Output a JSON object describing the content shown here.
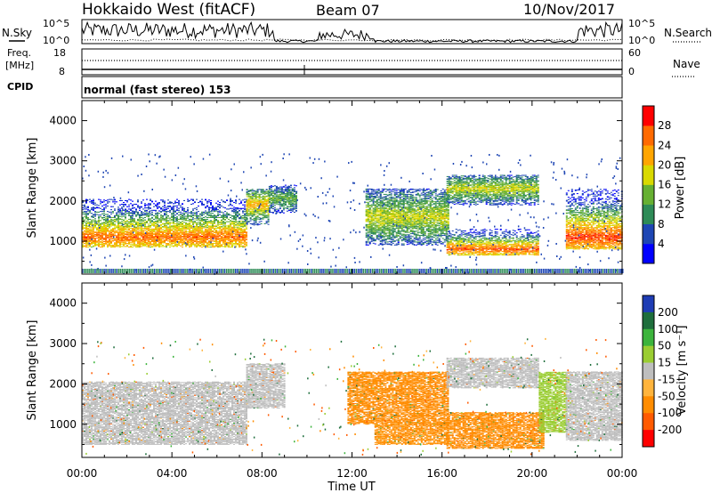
{
  "header": {
    "station": "Hokkaido West (fitACF)",
    "beam": "Beam 07",
    "date": "10/Nov/2017"
  },
  "side_labels": {
    "nsky": "N.Sky",
    "nsearch": "N.Search",
    "freq_line1": "Freq.",
    "freq_line2": "[MHz]",
    "nave": "Nave",
    "cpid": "CPID",
    "cpid_value": "normal (fast stereo) 153",
    "noise_ticks": [
      "10^5",
      "10^0"
    ],
    "freq_ticks": [
      "18",
      "8"
    ],
    "nave_ticks": [
      "60",
      "0"
    ]
  },
  "chart_data": [
    {
      "type": "heatmap",
      "name": "power",
      "xlabel": "",
      "ylabel": "Slant Range [km]",
      "x_range_hours": [
        0,
        24
      ],
      "ylim": [
        180,
        4500
      ],
      "yticks": [
        "1000",
        "2000",
        "3000",
        "4000"
      ],
      "colorbar": {
        "label": "Power [dB]",
        "ticks": [
          "4",
          "8",
          "12",
          "16",
          "20",
          "24",
          "28"
        ],
        "range": [
          0,
          30
        ],
        "colors": [
          "#0000ff",
          "#1e46b4",
          "#2e8b57",
          "#66b032",
          "#d9d900",
          "#ffa500",
          "#ff6a00",
          "#ff0000"
        ]
      },
      "bands": [
        {
          "t": [
            0.0,
            7.3
          ],
          "r_low": 850,
          "r_high": 2050,
          "core": 1100,
          "peak_db": 26
        },
        {
          "t": [
            7.3,
            8.3
          ],
          "r_low": 1400,
          "r_high": 2300,
          "core": 1900,
          "peak_db": 22
        },
        {
          "t": [
            8.3,
            9.5
          ],
          "r_low": 1700,
          "r_high": 2400,
          "core": 2050,
          "peak_db": 14
        },
        {
          "t": [
            12.6,
            16.3
          ],
          "r_low": 900,
          "r_high": 2300,
          "core": 1600,
          "peak_db": 18
        },
        {
          "t": [
            16.2,
            20.3
          ],
          "r_low": 650,
          "r_high": 1300,
          "core": 800,
          "peak_db": 27
        },
        {
          "t": [
            16.2,
            20.3
          ],
          "r_low": 1900,
          "r_high": 2650,
          "core": 2300,
          "peak_db": 18
        },
        {
          "t": [
            21.5,
            24.0
          ],
          "r_low": 800,
          "r_high": 2300,
          "core": 1100,
          "peak_db": 28
        }
      ]
    },
    {
      "type": "heatmap",
      "name": "velocity",
      "xlabel": "Time UT",
      "ylabel": "Slant Range [km]",
      "x_range_hours": [
        0,
        24
      ],
      "xticks": [
        "00:00",
        "04:00",
        "08:00",
        "12:00",
        "16:00",
        "20:00",
        "00:00"
      ],
      "ylim": [
        180,
        4500
      ],
      "yticks": [
        "1000",
        "2000",
        "3000",
        "4000"
      ],
      "colorbar": {
        "label": "Velocity [m s⁻¹]",
        "ticks": [
          "200",
          "100",
          "50",
          "15",
          "-15",
          "-50",
          "-100",
          "-200"
        ],
        "range": [
          -250,
          250
        ],
        "colors": [
          "#ff0000",
          "#ff5a00",
          "#ff8c00",
          "#ffb43c",
          "#bebebe",
          "#9acd32",
          "#3cb43c",
          "#1e6e3c",
          "#1e3cb4"
        ]
      },
      "bands": [
        {
          "t": [
            0.0,
            7.3
          ],
          "r_low": 500,
          "r_high": 2050,
          "vel": 0
        },
        {
          "t": [
            7.3,
            9.0
          ],
          "r_low": 1400,
          "r_high": 2500,
          "vel": 0
        },
        {
          "t": [
            11.8,
            16.3
          ],
          "r_low": 1000,
          "r_high": 2300,
          "vel": -80
        },
        {
          "t": [
            13.0,
            16.3
          ],
          "r_low": 500,
          "r_high": 1000,
          "vel": -60
        },
        {
          "t": [
            16.2,
            20.5
          ],
          "r_low": 400,
          "r_high": 1300,
          "vel": -75
        },
        {
          "t": [
            16.2,
            20.3
          ],
          "r_low": 1900,
          "r_high": 2650,
          "vel": 0
        },
        {
          "t": [
            20.3,
            21.5
          ],
          "r_low": 800,
          "r_high": 2300,
          "vel": 30
        },
        {
          "t": [
            21.5,
            24.0
          ],
          "r_low": 600,
          "r_high": 2300,
          "vel": 0
        }
      ]
    }
  ]
}
